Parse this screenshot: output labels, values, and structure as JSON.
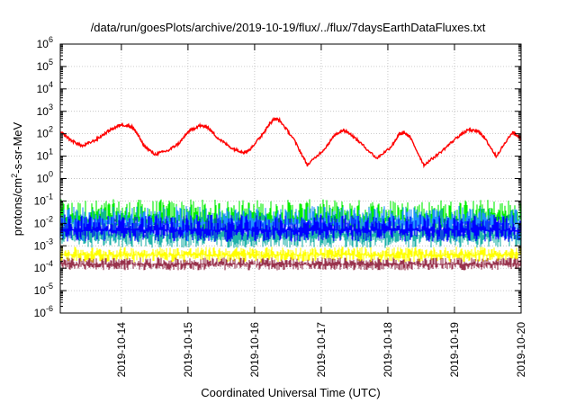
{
  "chart_data": {
    "type": "line",
    "title": "/data/run/goesPlots/archive/2019-10-19/flux/../flux/7daysEarthDataFluxes.txt",
    "xlabel": "Coordinated Universal Time (UTC)",
    "ylabel_main": "protons/cm",
    "ylabel_sup": "2",
    "ylabel_tail": "-s-sr-MeV",
    "yscale": "log",
    "ylim_exp": [
      -6,
      6
    ],
    "ytick_labels": [
      {
        "base": "10",
        "exp": "-6"
      },
      {
        "base": "10",
        "exp": "-5"
      },
      {
        "base": "10",
        "exp": "-4"
      },
      {
        "base": "10",
        "exp": "-3"
      },
      {
        "base": "10",
        "exp": "-2"
      },
      {
        "base": "10",
        "exp": "-1"
      },
      {
        "base": "10",
        "exp": "0"
      },
      {
        "base": "10",
        "exp": "1"
      },
      {
        "base": "10",
        "exp": "2"
      },
      {
        "base": "10",
        "exp": "3"
      },
      {
        "base": "10",
        "exp": "4"
      },
      {
        "base": "10",
        "exp": "5"
      },
      {
        "base": "10",
        "exp": "6"
      }
    ],
    "x_start": "2019-10-13 02:00",
    "x_end": "2019-10-20 00:00",
    "xtick_labels": [
      "2019-10-14",
      "2019-10-15",
      "2019-10-16",
      "2019-10-17",
      "2019-10-18",
      "2019-10-19",
      "2019-10-20"
    ],
    "grid": true,
    "series": [
      {
        "color": "#ff0000",
        "x": [
          "2019-10-13 02:00",
          "2019-10-13 06:00",
          "2019-10-13 10:00",
          "2019-10-13 15:00",
          "2019-10-13 20:00",
          "2019-10-14 00:00",
          "2019-10-14 04:00",
          "2019-10-14 06:00",
          "2019-10-14 08:00",
          "2019-10-14 12:00",
          "2019-10-14 17:00",
          "2019-10-14 21:00",
          "2019-10-15 00:00",
          "2019-10-15 04:00",
          "2019-10-15 07:00",
          "2019-10-15 11:00",
          "2019-10-15 16:00",
          "2019-10-15 20:00",
          "2019-10-15 22:00",
          "2019-10-16 02:00",
          "2019-10-16 05:00",
          "2019-10-16 07:00",
          "2019-10-16 09:00",
          "2019-10-16 14:00",
          "2019-10-16 19:00",
          "2019-10-17 01:00",
          "2019-10-17 05:00",
          "2019-10-17 08:00",
          "2019-10-17 10:00",
          "2019-10-17 14:00",
          "2019-10-17 20:00",
          "2019-10-18 01:00",
          "2019-10-18 04:00",
          "2019-10-18 06:00",
          "2019-10-18 08:00",
          "2019-10-18 13:00",
          "2019-10-18 19:00",
          "2019-10-19 01:00",
          "2019-10-19 05:00",
          "2019-10-19 09:00",
          "2019-10-19 11:00",
          "2019-10-19 15:00",
          "2019-10-19 21:00",
          "2019-10-20 00:00"
        ],
        "y": [
          120,
          50,
          28,
          55,
          150,
          260,
          200,
          90,
          30,
          12,
          18,
          40,
          120,
          230,
          200,
          60,
          22,
          15,
          18,
          70,
          230,
          480,
          400,
          60,
          4,
          20,
          90,
          150,
          110,
          40,
          8,
          25,
          90,
          110,
          70,
          4,
          15,
          70,
          150,
          120,
          60,
          10,
          120,
          60
        ]
      },
      {
        "color": "#00ee00",
        "x": [
          "2019-10-13 02:00",
          "2019-10-20 00:00"
        ],
        "y": [
          0.015,
          0.015
        ],
        "band": [
          0.005,
          0.12
        ]
      },
      {
        "color": "#1e90ff",
        "x": [
          "2019-10-13 02:00",
          "2019-10-20 00:00"
        ],
        "y": [
          0.01,
          0.01
        ],
        "band": [
          0.0015,
          0.06
        ]
      },
      {
        "color": "#20b2aa",
        "x": [
          "2019-10-13 02:00",
          "2019-10-20 00:00"
        ],
        "y": [
          0.003,
          0.003
        ],
        "band": [
          0.0008,
          0.012
        ]
      },
      {
        "color": "#0000ff",
        "x": [
          "2019-10-13 02:00",
          "2019-10-20 00:00"
        ],
        "y": [
          0.005,
          0.005
        ],
        "band": [
          0.0015,
          0.025
        ]
      },
      {
        "color": "#ffff00",
        "x": [
          "2019-10-13 02:00",
          "2019-10-20 00:00"
        ],
        "y": [
          0.0004,
          0.0004
        ],
        "band": [
          0.00018,
          0.0009
        ]
      },
      {
        "color": "#99334d",
        "x": [
          "2019-10-13 02:00",
          "2019-10-20 00:00"
        ],
        "y": [
          0.00015,
          0.00015
        ],
        "band": [
          8e-05,
          0.0003
        ]
      }
    ]
  }
}
